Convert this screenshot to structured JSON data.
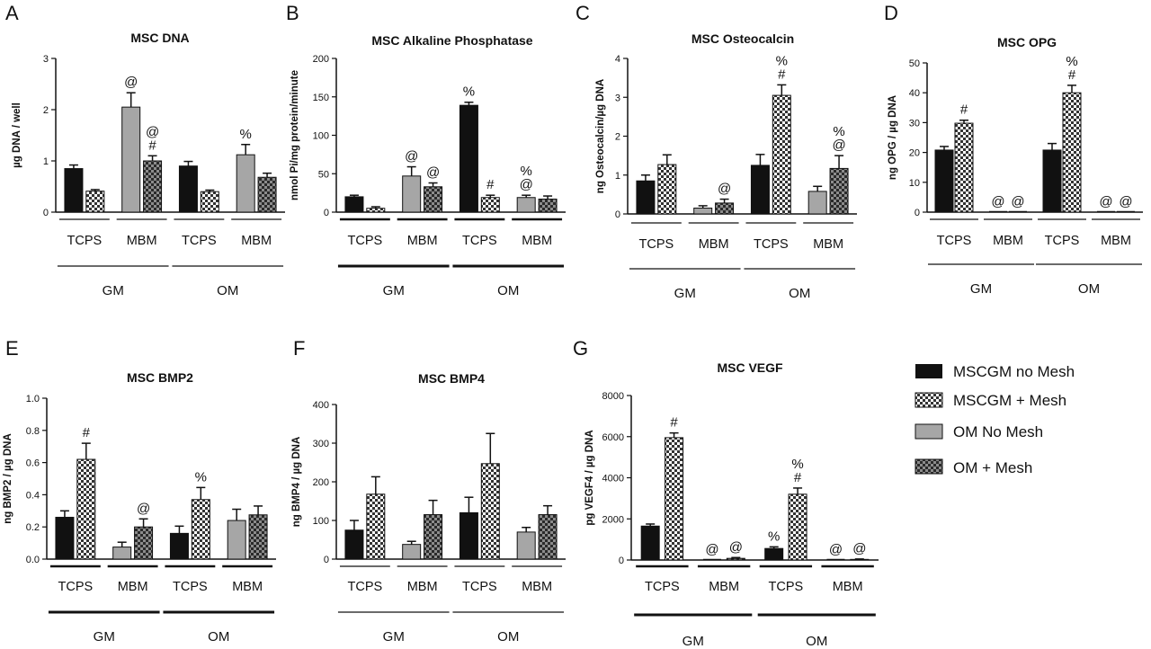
{
  "legend": [
    {
      "label": "MSCGM no Mesh",
      "key": "solid_black"
    },
    {
      "label": "MSCGM  + Mesh",
      "key": "check_white"
    },
    {
      "label": "OM No Mesh",
      "key": "solid_gray"
    },
    {
      "label": "OM  + Mesh",
      "key": "check_gray"
    }
  ],
  "colors": {
    "black": "#111111",
    "gray": "#a6a6a6",
    "white": "#ffffff",
    "dark_check": "#333333"
  },
  "chart_data": [
    {
      "panel": "A",
      "type": "bar",
      "title": "MSC DNA",
      "ylabel": "µg DNA / well",
      "ylim": [
        0,
        3
      ],
      "yticks": [
        0,
        1,
        2,
        3
      ],
      "groups": [
        "TCPS",
        "MBM",
        "TCPS",
        "MBM"
      ],
      "media": [
        "GM",
        "OM"
      ],
      "bars": [
        {
          "v": 0.85,
          "e": 0.07,
          "a": ""
        },
        {
          "v": 0.41,
          "e": 0.03,
          "a": ""
        },
        {
          "v": 2.05,
          "e": 0.28,
          "a": "@"
        },
        {
          "v": 1.0,
          "e": 0.1,
          "a": "@\n#"
        },
        {
          "v": 0.9,
          "e": 0.09,
          "a": ""
        },
        {
          "v": 0.4,
          "e": 0.03,
          "a": ""
        },
        {
          "v": 1.12,
          "e": 0.2,
          "a": "%"
        },
        {
          "v": 0.68,
          "e": 0.08,
          "a": ""
        }
      ]
    },
    {
      "panel": "B",
      "type": "bar",
      "title": "MSC Alkaline Phosphatase",
      "ylabel": "nmol Pi/mg protein/minute",
      "ylim": [
        0,
        200
      ],
      "yticks": [
        0,
        50,
        100,
        150,
        200
      ],
      "groups": [
        "TCPS",
        "MBM",
        "TCPS",
        "MBM"
      ],
      "media": [
        "GM",
        "OM"
      ],
      "bars": [
        {
          "v": 20,
          "e": 2,
          "a": ""
        },
        {
          "v": 5,
          "e": 2,
          "a": ""
        },
        {
          "v": 47,
          "e": 12,
          "a": "@"
        },
        {
          "v": 33,
          "e": 5,
          "a": "@"
        },
        {
          "v": 139,
          "e": 4,
          "a": "%"
        },
        {
          "v": 19,
          "e": 3,
          "a": "#"
        },
        {
          "v": 19,
          "e": 3,
          "a": "%\n@"
        },
        {
          "v": 17,
          "e": 4,
          "a": ""
        }
      ]
    },
    {
      "panel": "C",
      "type": "bar",
      "title": "MSC Osteocalcin",
      "ylabel": "ng Osteocalcin/µg DNA",
      "ylim": [
        0,
        4
      ],
      "yticks": [
        0,
        1,
        2,
        3,
        4
      ],
      "groups": [
        "TCPS",
        "MBM",
        "TCPS",
        "MBM"
      ],
      "media": [
        "GM",
        "OM"
      ],
      "bars": [
        {
          "v": 0.85,
          "e": 0.15,
          "a": ""
        },
        {
          "v": 1.27,
          "e": 0.25,
          "a": ""
        },
        {
          "v": 0.15,
          "e": 0.06,
          "a": ""
        },
        {
          "v": 0.28,
          "e": 0.1,
          "a": "@"
        },
        {
          "v": 1.25,
          "e": 0.28,
          "a": ""
        },
        {
          "v": 3.05,
          "e": 0.27,
          "a": "%\n#"
        },
        {
          "v": 0.58,
          "e": 0.13,
          "a": ""
        },
        {
          "v": 1.17,
          "e": 0.33,
          "a": "%\n@"
        }
      ]
    },
    {
      "panel": "D",
      "type": "bar",
      "title": "MSC OPG",
      "ylabel": "ng OPG / µg DNA",
      "ylim": [
        0,
        50
      ],
      "yticks": [
        0,
        10,
        20,
        30,
        40,
        50
      ],
      "groups": [
        "TCPS",
        "MBM",
        "TCPS",
        "MBM"
      ],
      "media": [
        "GM",
        "OM"
      ],
      "bars": [
        {
          "v": 20.8,
          "e": 1.2,
          "a": ""
        },
        {
          "v": 29.8,
          "e": 1.0,
          "a": "#"
        },
        {
          "v": 0,
          "e": 0,
          "a": "@"
        },
        {
          "v": 0,
          "e": 0,
          "a": "@"
        },
        {
          "v": 20.8,
          "e": 2.2,
          "a": ""
        },
        {
          "v": 40,
          "e": 2.5,
          "a": "%\n#"
        },
        {
          "v": 0,
          "e": 0,
          "a": "@"
        },
        {
          "v": 0,
          "e": 0,
          "a": "@"
        }
      ]
    },
    {
      "panel": "E",
      "type": "bar",
      "title": "MSC BMP2",
      "ylabel": "ng BMP2 / µg DNA",
      "ylim": [
        0,
        1.0
      ],
      "yticks": [
        0.0,
        0.2,
        0.4,
        0.6,
        0.8,
        1.0
      ],
      "groups": [
        "TCPS",
        "MBM",
        "TCPS",
        "MBM"
      ],
      "media": [
        "GM",
        "OM"
      ],
      "bars": [
        {
          "v": 0.26,
          "e": 0.04,
          "a": ""
        },
        {
          "v": 0.62,
          "e": 0.1,
          "a": "#"
        },
        {
          "v": 0.075,
          "e": 0.03,
          "a": ""
        },
        {
          "v": 0.2,
          "e": 0.05,
          "a": "@"
        },
        {
          "v": 0.16,
          "e": 0.045,
          "a": ""
        },
        {
          "v": 0.37,
          "e": 0.075,
          "a": "%"
        },
        {
          "v": 0.24,
          "e": 0.07,
          "a": ""
        },
        {
          "v": 0.275,
          "e": 0.055,
          "a": ""
        }
      ]
    },
    {
      "panel": "F",
      "type": "bar",
      "title": "MSC BMP4",
      "ylabel": "ng BMP4 / µg DNA",
      "ylim": [
        0,
        400
      ],
      "yticks": [
        0,
        100,
        200,
        300,
        400
      ],
      "groups": [
        "TCPS",
        "MBM",
        "TCPS",
        "MBM"
      ],
      "media": [
        "GM",
        "OM"
      ],
      "bars": [
        {
          "v": 75,
          "e": 25,
          "a": ""
        },
        {
          "v": 168,
          "e": 45,
          "a": ""
        },
        {
          "v": 38,
          "e": 8,
          "a": ""
        },
        {
          "v": 115,
          "e": 37,
          "a": ""
        },
        {
          "v": 120,
          "e": 40,
          "a": ""
        },
        {
          "v": 247,
          "e": 78,
          "a": ""
        },
        {
          "v": 70,
          "e": 12,
          "a": ""
        },
        {
          "v": 115,
          "e": 23,
          "a": ""
        }
      ]
    },
    {
      "panel": "G",
      "type": "bar",
      "title": "MSC VEGF",
      "ylabel": "pg VEGF4 / µg DNA",
      "ylim": [
        0,
        8000
      ],
      "yticks": [
        0,
        2000,
        4000,
        6000,
        8000
      ],
      "groups": [
        "TCPS",
        "MBM",
        "TCPS",
        "MBM"
      ],
      "media": [
        "GM",
        "OM"
      ],
      "bars": [
        {
          "v": 1650,
          "e": 100,
          "a": ""
        },
        {
          "v": 5950,
          "e": 230,
          "a": "#"
        },
        {
          "v": 0,
          "e": 0,
          "a": "@"
        },
        {
          "v": 80,
          "e": 40,
          "a": "@"
        },
        {
          "v": 560,
          "e": 80,
          "a": "%"
        },
        {
          "v": 3200,
          "e": 300,
          "a": "%\n#"
        },
        {
          "v": 0,
          "e": 0,
          "a": "@"
        },
        {
          "v": 30,
          "e": 20,
          "a": "@"
        }
      ]
    }
  ]
}
